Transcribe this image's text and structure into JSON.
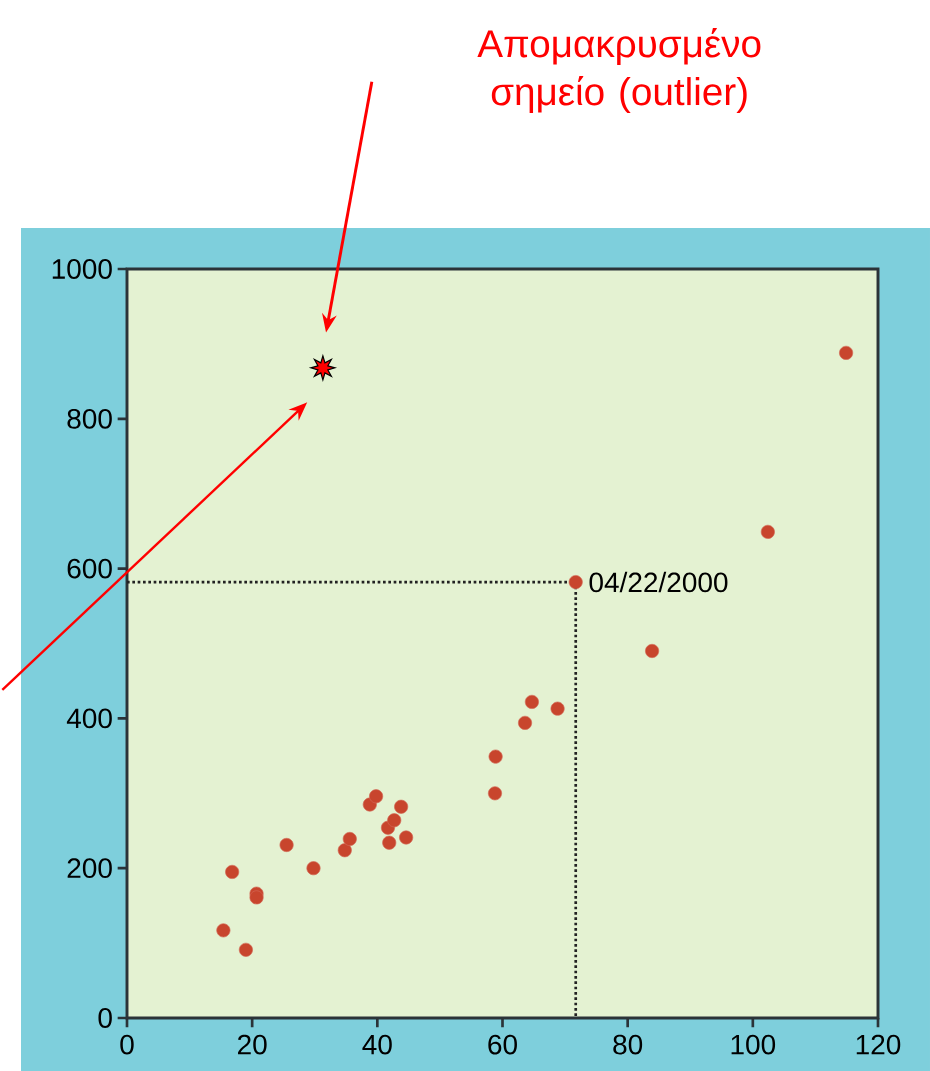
{
  "chart_data": {
    "type": "scatter",
    "annotations": [
      "Απομακρυσμένο σημείο (outlier)",
      {
        "text": "04/22/2000",
        "x": 71.7,
        "y": 582
      }
    ],
    "series": [
      {
        "color": "#c8452d",
        "marker": "circle",
        "x": [
          15.4,
          16.8,
          19.0,
          20.7,
          20.7,
          25.5,
          29.8,
          34.8,
          35.6,
          38.8,
          39.8,
          41.7,
          41.9,
          42.7,
          43.8,
          44.6,
          58.8,
          58.9,
          63.6,
          64.7,
          68.8,
          71.7,
          83.9,
          102.4,
          114.9
        ],
        "values": [
          117,
          195,
          91,
          166,
          161,
          231,
          200,
          224,
          239,
          285,
          296,
          254,
          234,
          264,
          282,
          241,
          300,
          349,
          394,
          422,
          413,
          582,
          490,
          649,
          888
        ]
      },
      {
        "color": "#ff0000",
        "marker": "star",
        "x": [
          31.3
        ],
        "values": [
          868
        ]
      },
      {
        "type": "line",
        "color": "#222222",
        "line_style": "dotted",
        "marker": "none",
        "x": [
          0,
          71.7,
          71.7
        ],
        "values": [
          582,
          582,
          0
        ]
      }
    ],
    "xlim": [
      0,
      120
    ],
    "ylim": [
      0,
      1000
    ],
    "xticks": [
      0,
      20,
      40,
      60,
      80,
      100,
      120
    ],
    "yticks": [
      0,
      200,
      400,
      600,
      800,
      1000
    ]
  }
}
